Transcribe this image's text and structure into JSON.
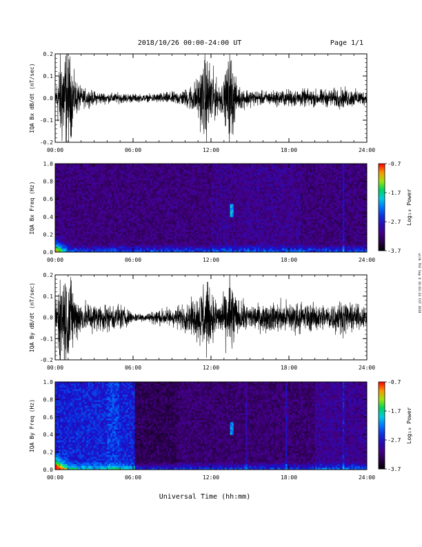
{
  "header": {
    "title": "2018/10/26  00:00-24:00 UT",
    "page": "Page 1/1"
  },
  "footer": {
    "xlabel": "Universal Time (hh:mm)",
    "side_note": "with  ThI  Sep 8  16:03:33  CST  2018"
  },
  "x_ticks": [
    "00:00",
    "06:00",
    "12:00",
    "18:00",
    "24:00"
  ],
  "chart_data": [
    {
      "type": "line",
      "id": "bx-dbdt",
      "ylabel": "IQA Bx dB/dt (nT/sec)",
      "xlim": [
        0,
        24
      ],
      "ylim": [
        -0.2,
        0.2
      ],
      "yticks": [
        "0.2",
        "0.1",
        "0.0",
        "-0.1",
        "-0.2"
      ],
      "yticks_values": [
        0.2,
        0.1,
        0.0,
        -0.1,
        -0.2
      ],
      "x": [
        0,
        0.5,
        1,
        1.5,
        2,
        3,
        4,
        5,
        6,
        7,
        8,
        9,
        10,
        10.5,
        11,
        11.5,
        12,
        12.5,
        13,
        13.5,
        14,
        15,
        16,
        17,
        18,
        19,
        20,
        21,
        22,
        23,
        24
      ],
      "amplitude": [
        0.05,
        0.3,
        0.3,
        0.12,
        0.06,
        0.04,
        0.03,
        0.03,
        0.025,
        0.02,
        0.03,
        0.035,
        0.05,
        0.08,
        0.12,
        0.25,
        0.2,
        0.09,
        0.1,
        0.3,
        0.07,
        0.05,
        0.04,
        0.045,
        0.05,
        0.05,
        0.05,
        0.05,
        0.06,
        0.05,
        0.04
      ]
    },
    {
      "type": "heatmap",
      "id": "bx-spectrogram",
      "ylabel": "IQA Bx Freq (Hz)",
      "xlim": [
        0,
        24
      ],
      "ylim": [
        0,
        1
      ],
      "yticks": [
        "1.0",
        "0.8",
        "0.6",
        "0.4",
        "0.2",
        "0.0"
      ],
      "yticks_values": [
        1.0,
        0.8,
        0.6,
        0.4,
        0.2,
        0.0
      ],
      "colorbar": {
        "label": "Log₁₀ Power",
        "ticks": [
          "-0.7",
          "-1.7",
          "-2.7",
          "-3.7"
        ],
        "range": [
          -3.7,
          -0.7
        ]
      }
    },
    {
      "type": "line",
      "id": "by-dbdt",
      "ylabel": "IQA By dB/dt (nT/sec)",
      "xlim": [
        0,
        24
      ],
      "ylim": [
        -0.2,
        0.2
      ],
      "yticks": [
        "0.2",
        "0.1",
        "0.0",
        "-0.1",
        "-0.2"
      ],
      "yticks_values": [
        0.2,
        0.1,
        0.0,
        -0.1,
        -0.2
      ],
      "x": [
        0,
        0.5,
        1,
        1.5,
        2,
        3,
        4,
        5,
        6,
        7,
        8,
        9,
        10,
        10.5,
        11,
        11.5,
        12,
        12.5,
        13,
        13.5,
        14,
        15,
        16,
        17,
        18,
        19,
        20,
        21,
        22,
        23,
        24
      ],
      "amplitude": [
        0.1,
        0.3,
        0.3,
        0.15,
        0.1,
        0.09,
        0.08,
        0.08,
        0.03,
        0.025,
        0.05,
        0.06,
        0.08,
        0.1,
        0.14,
        0.25,
        0.15,
        0.1,
        0.12,
        0.3,
        0.1,
        0.08,
        0.08,
        0.09,
        0.1,
        0.09,
        0.08,
        0.08,
        0.1,
        0.08,
        0.06
      ]
    },
    {
      "type": "heatmap",
      "id": "by-spectrogram",
      "ylabel": "IQA By Freq (Hz)",
      "xlim": [
        0,
        24
      ],
      "ylim": [
        0,
        1
      ],
      "yticks": [
        "1.0",
        "0.8",
        "0.6",
        "0.4",
        "0.2",
        "0.0"
      ],
      "yticks_values": [
        1.0,
        0.8,
        0.6,
        0.4,
        0.2,
        0.0
      ],
      "colorbar": {
        "label": "Log₁₀ Power",
        "ticks": [
          "-0.7",
          "-1.7",
          "-2.7",
          "-3.7"
        ],
        "range": [
          -3.7,
          -0.7
        ]
      }
    }
  ]
}
